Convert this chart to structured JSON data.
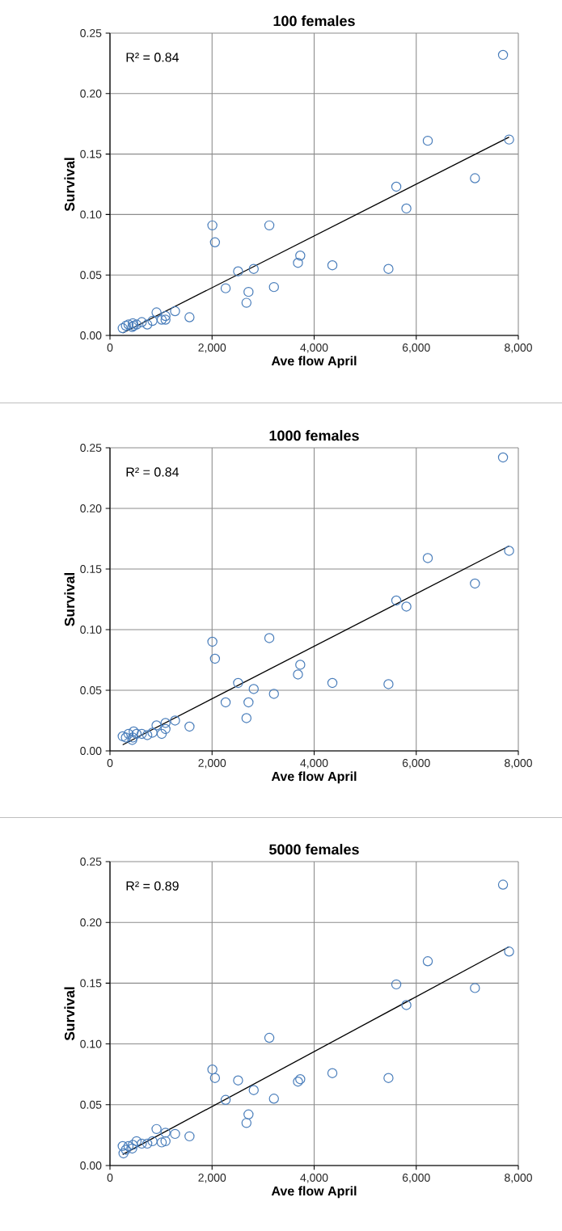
{
  "chart_data": [
    {
      "type": "scatter",
      "title": "100 females",
      "xlabel": "Ave flow April",
      "ylabel": "Survival",
      "annotations": [
        "R² = 0.84"
      ],
      "xlim": [
        0,
        8000
      ],
      "xticks": [
        0,
        {
          "value": 2000,
          "label": "2,000"
        },
        {
          "value": 4000,
          "label": "4,000"
        },
        {
          "value": 6000,
          "label": "6,000"
        },
        {
          "value": 8000,
          "label": "8,000"
        }
      ],
      "ylim": [
        0,
        0.25
      ],
      "yticks": [
        {
          "value": 0,
          "label": "0.00"
        },
        {
          "value": 0.05,
          "label": "0.05"
        },
        {
          "value": 0.1,
          "label": "0.10"
        },
        {
          "value": 0.15,
          "label": "0.15"
        },
        {
          "value": 0.2,
          "label": "0.20"
        },
        {
          "value": 0.25,
          "label": "0.25"
        }
      ],
      "grid": true,
      "series": [
        {
          "color": "#4a7ebb",
          "marker": "circle",
          "x": [
            7700,
            7819,
            6226,
            7150,
            5609,
            5807,
            2006,
            3122,
            2057,
            3728,
            3683,
            4357,
            5456,
            2510,
            2816,
            2266,
            3212,
            2714,
            2674,
            1558,
            1275,
            912,
            1088,
            1088,
            1014,
            833,
            731,
            623,
            521,
            448,
            436,
            363,
            312,
            249,
            465
          ],
          "values": [
            0.232,
            0.162,
            0.161,
            0.13,
            0.123,
            0.105,
            0.091,
            0.091,
            0.077,
            0.066,
            0.06,
            0.058,
            0.055,
            0.053,
            0.055,
            0.039,
            0.04,
            0.036,
            0.027,
            0.015,
            0.02,
            0.019,
            0.016,
            0.013,
            0.013,
            0.012,
            0.009,
            0.011,
            0.009,
            0.01,
            0.007,
            0.009,
            0.008,
            0.006,
            0.008
          ]
        },
        {
          "type": "line",
          "color": "#000000",
          "x": [
            249,
            7819
          ],
          "values": [
            0.002,
            0.164
          ]
        }
      ]
    },
    {
      "type": "scatter",
      "title": "1000 females",
      "xlabel": "Ave flow April",
      "ylabel": "Survival",
      "annotations": [
        "R² = 0.84"
      ],
      "xlim": [
        0,
        8000
      ],
      "xticks": [
        0,
        {
          "value": 2000,
          "label": "2,000"
        },
        {
          "value": 4000,
          "label": "4,000"
        },
        {
          "value": 6000,
          "label": "6,000"
        },
        {
          "value": 8000,
          "label": "8,000"
        }
      ],
      "ylim": [
        0,
        0.25
      ],
      "yticks": [
        {
          "value": 0,
          "label": "0.00"
        },
        {
          "value": 0.05,
          "label": "0.05"
        },
        {
          "value": 0.1,
          "label": "0.10"
        },
        {
          "value": 0.15,
          "label": "0.15"
        },
        {
          "value": 0.2,
          "label": "0.20"
        },
        {
          "value": 0.25,
          "label": "0.25"
        }
      ],
      "grid": true,
      "series": [
        {
          "color": "#4a7ebb",
          "marker": "circle",
          "x": [
            7700,
            7819,
            6226,
            7150,
            5609,
            5807,
            2006,
            3122,
            2057,
            3728,
            3683,
            4357,
            5456,
            2510,
            2816,
            2266,
            3212,
            2714,
            2674,
            1558,
            1275,
            912,
            1088,
            1088,
            1014,
            833,
            731,
            623,
            521,
            448,
            436,
            363,
            312,
            249,
            465
          ],
          "values": [
            0.242,
            0.165,
            0.159,
            0.138,
            0.124,
            0.119,
            0.09,
            0.093,
            0.076,
            0.071,
            0.063,
            0.056,
            0.055,
            0.056,
            0.051,
            0.04,
            0.047,
            0.04,
            0.027,
            0.02,
            0.025,
            0.021,
            0.023,
            0.018,
            0.014,
            0.015,
            0.013,
            0.014,
            0.014,
            0.011,
            0.009,
            0.014,
            0.011,
            0.012,
            0.016
          ]
        },
        {
          "type": "line",
          "color": "#000000",
          "x": [
            249,
            7819
          ],
          "values": [
            0.005,
            0.169
          ]
        }
      ]
    },
    {
      "type": "scatter",
      "title": "5000 females",
      "xlabel": "Ave flow April",
      "ylabel": "Survival",
      "annotations": [
        "R² = 0.89"
      ],
      "xlim": [
        0,
        8000
      ],
      "xticks": [
        0,
        {
          "value": 2000,
          "label": "2,000"
        },
        {
          "value": 4000,
          "label": "4,000"
        },
        {
          "value": 6000,
          "label": "6,000"
        },
        {
          "value": 8000,
          "label": "8,000"
        }
      ],
      "ylim": [
        0,
        0.25
      ],
      "yticks": [
        {
          "value": 0,
          "label": "0.00"
        },
        {
          "value": 0.05,
          "label": "0.05"
        },
        {
          "value": 0.1,
          "label": "0.10"
        },
        {
          "value": 0.15,
          "label": "0.15"
        },
        {
          "value": 0.2,
          "label": "0.20"
        },
        {
          "value": 0.25,
          "label": "0.25"
        }
      ],
      "grid": true,
      "series": [
        {
          "color": "#4a7ebb",
          "marker": "circle",
          "x": [
            7700,
            7819,
            6226,
            7150,
            5609,
            5807,
            2006,
            3122,
            2057,
            3728,
            3683,
            4357,
            5456,
            2510,
            2816,
            2266,
            3212,
            2714,
            2674,
            1558,
            1275,
            912,
            1088,
            1088,
            1014,
            833,
            731,
            623,
            521,
            448,
            436,
            363,
            312,
            249,
            265
          ],
          "values": [
            0.231,
            0.176,
            0.168,
            0.146,
            0.149,
            0.132,
            0.079,
            0.105,
            0.072,
            0.071,
            0.069,
            0.076,
            0.072,
            0.07,
            0.062,
            0.054,
            0.055,
            0.042,
            0.035,
            0.024,
            0.026,
            0.03,
            0.027,
            0.02,
            0.019,
            0.02,
            0.018,
            0.018,
            0.02,
            0.017,
            0.014,
            0.016,
            0.013,
            0.016,
            0.01
          ]
        },
        {
          "type": "line",
          "color": "#000000",
          "x": [
            249,
            7819
          ],
          "values": [
            0.009,
            0.18
          ]
        }
      ]
    }
  ]
}
